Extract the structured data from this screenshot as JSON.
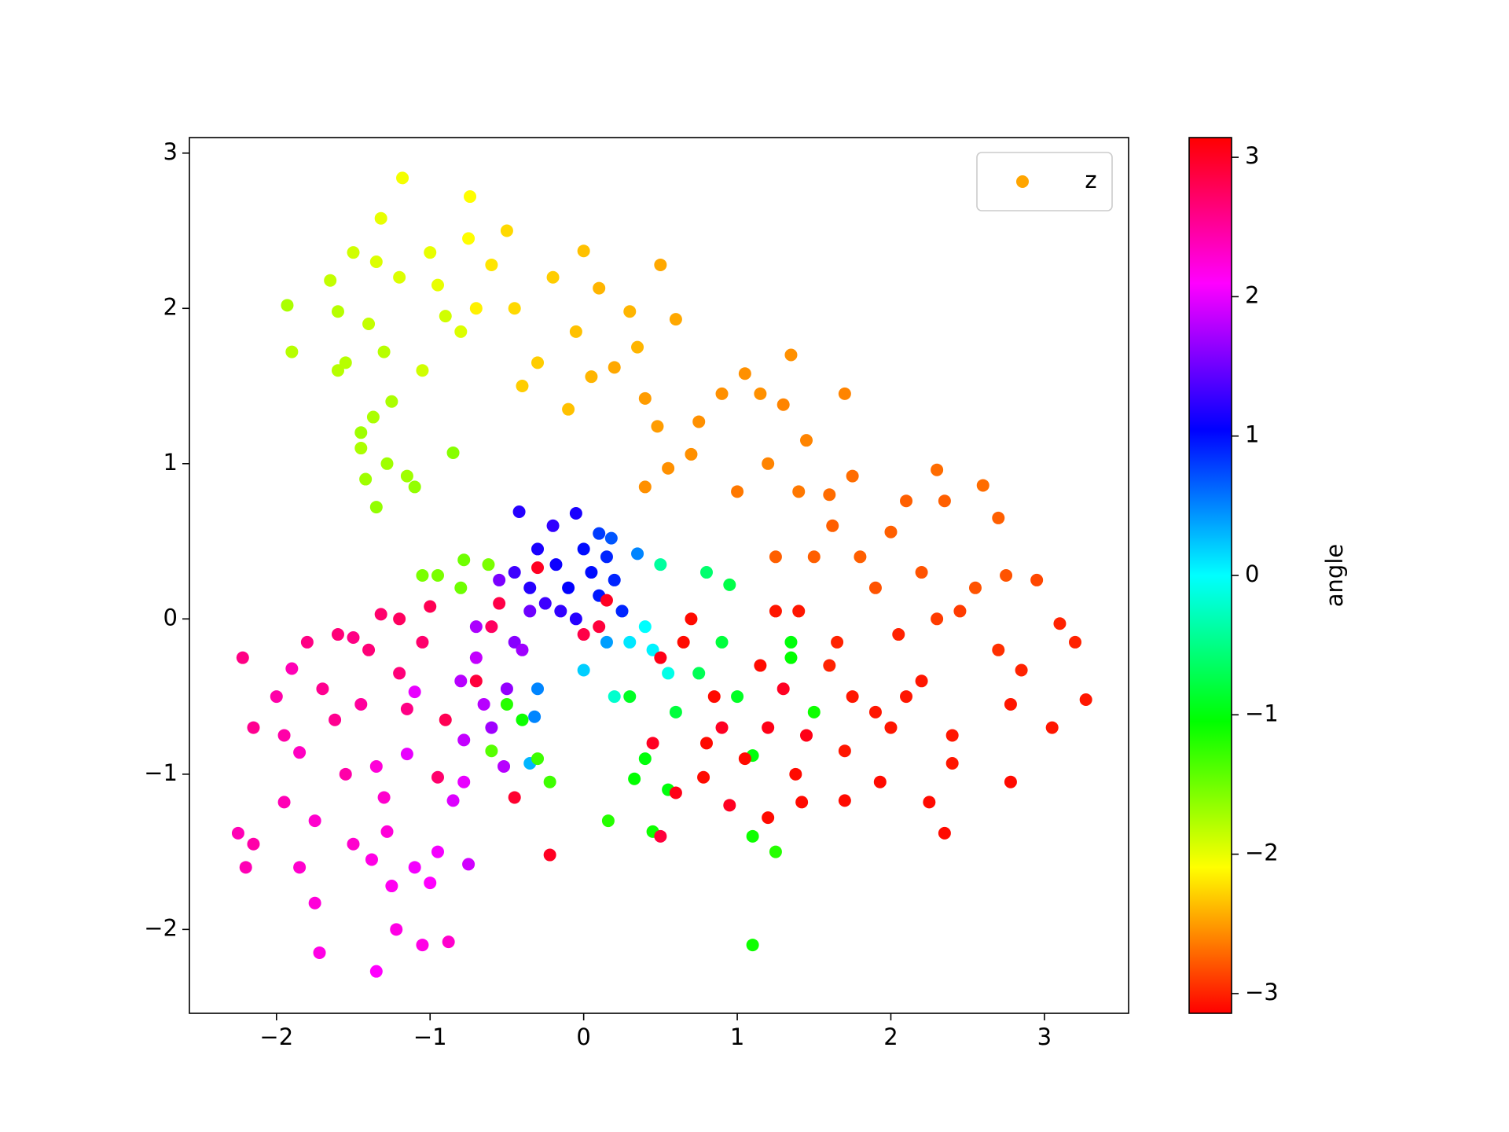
{
  "chart_data": {
    "type": "scatter",
    "xlim": [
      -2.567,
      3.548
    ],
    "ylim": [
      -2.54,
      3.1
    ],
    "xticks": [
      {
        "value": -2,
        "label": "−2"
      },
      {
        "value": -1,
        "label": "−1"
      },
      0,
      1,
      2,
      3
    ],
    "yticks": [
      {
        "value": -2,
        "label": "−2"
      },
      {
        "value": -1,
        "label": "−1"
      },
      0,
      1,
      2,
      3
    ],
    "legend": "upper right",
    "x": [
      -1.93,
      -1.9,
      -1.65,
      -1.6,
      -1.55,
      -1.5,
      -1.45,
      -1.4,
      -1.35,
      -1.32,
      -1.3,
      -1.28,
      -1.25,
      -1.2,
      -1.18,
      -1.15,
      -1.1,
      -1.05,
      -1.0,
      -0.95,
      -0.9,
      -0.85,
      -0.8,
      -0.75,
      -0.74,
      -1.42,
      -1.35,
      -1.45,
      -1.6,
      -1.37,
      -0.7,
      -0.6,
      -0.5,
      -0.45,
      -0.4,
      -0.3,
      -0.2,
      -0.1,
      -0.05,
      0.0,
      0.05,
      0.1,
      0.2,
      0.3,
      0.4,
      0.48,
      0.5,
      0.55,
      0.6,
      0.7,
      0.75,
      0.9,
      1.0,
      1.05,
      1.15,
      1.2,
      1.3,
      1.35,
      1.45,
      1.7,
      1.4,
      1.6,
      1.75,
      0.4,
      0.35,
      1.25,
      1.5,
      1.62,
      1.8,
      1.9,
      2.0,
      2.1,
      2.2,
      2.3,
      2.35,
      2.6,
      2.7,
      2.75,
      2.95,
      2.55,
      2.3,
      2.45,
      2.7,
      3.1,
      3.2,
      3.27,
      3.05,
      2.85,
      2.78,
      2.78,
      2.4,
      2.4,
      2.25,
      2.35,
      2.0,
      1.93,
      1.75,
      1.7,
      1.65,
      1.6,
      2.05,
      2.2,
      1.9,
      2.1,
      1.7,
      -0.42,
      -0.3,
      -0.2,
      -0.18,
      -0.1,
      -0.05,
      0.0,
      0.05,
      0.1,
      0.15,
      -0.35,
      -0.25,
      -0.15,
      0.2,
      0.18,
      -0.45,
      -0.05,
      0.25,
      0.35,
      0.1,
      0.15,
      0.0,
      -0.3,
      -0.32,
      0.4,
      0.55,
      0.45,
      -0.35,
      0.3,
      0.2,
      0.5,
      0.8,
      0.95,
      0.3,
      0.6,
      0.4,
      0.33,
      0.55,
      0.16,
      0.45,
      0.75,
      0.9,
      1.0,
      1.1,
      1.1,
      1.1,
      1.25,
      1.35,
      1.35,
      1.5,
      -0.5,
      -0.4,
      -0.3,
      -0.22,
      -0.6,
      -1.05,
      -0.95,
      -0.78,
      -0.8,
      -0.62,
      0.15,
      0.1,
      0.0,
      0.5,
      0.65,
      0.7,
      0.85,
      0.9,
      0.95,
      1.05,
      1.15,
      1.2,
      1.2,
      1.3,
      1.38,
      1.42,
      1.45,
      1.4,
      0.78,
      0.6,
      0.5,
      0.8,
      -0.22,
      -0.45,
      -0.3,
      -0.55,
      -0.7,
      -0.6,
      0.45,
      1.25,
      -2.25,
      -2.2,
      -2.15,
      -2.15,
      -2.22,
      -2.0,
      -1.95,
      -1.95,
      -1.9,
      -1.85,
      -1.85,
      -1.8,
      -1.75,
      -1.75,
      -1.72,
      -1.7,
      -1.62,
      -1.6,
      -1.55,
      -1.5,
      -1.45,
      -1.4,
      -1.38,
      -1.35,
      -1.35,
      -1.32,
      -1.3,
      -1.28,
      -1.25,
      -1.22,
      -1.2,
      -1.2,
      -1.15,
      -1.05,
      -1.0,
      -0.95,
      -0.9,
      -0.88,
      -1.05,
      -1.5,
      -0.95,
      -1.0,
      -1.1,
      -1.15,
      -0.85,
      -0.75,
      -0.8,
      -0.7,
      -0.6,
      -0.5,
      -0.45,
      -0.55,
      -0.4,
      -0.7,
      -0.78,
      -0.52,
      -1.1,
      -0.65,
      -0.35,
      -0.78
    ],
    "series": [
      {
        "name": "z",
        "color": "#ffa500",
        "values": [
          2.02,
          1.72,
          2.18,
          1.98,
          1.65,
          2.36,
          1.2,
          1.9,
          2.3,
          2.58,
          1.72,
          1.0,
          1.4,
          2.2,
          2.84,
          0.92,
          0.85,
          1.6,
          2.36,
          2.15,
          1.95,
          1.07,
          1.85,
          2.45,
          2.72,
          0.9,
          0.72,
          1.1,
          1.6,
          1.3,
          2.0,
          2.28,
          2.5,
          2.0,
          1.5,
          1.65,
          2.2,
          1.35,
          1.85,
          2.37,
          1.56,
          2.13,
          1.62,
          1.98,
          1.42,
          1.24,
          2.28,
          0.97,
          1.93,
          1.06,
          1.27,
          1.45,
          0.82,
          1.58,
          1.45,
          1.0,
          1.38,
          1.7,
          1.15,
          1.45,
          0.82,
          0.8,
          0.92,
          0.85,
          1.75,
          0.4,
          0.4,
          0.6,
          0.4,
          0.2,
          0.56,
          0.76,
          0.3,
          0.96,
          0.76,
          0.86,
          0.65,
          0.28,
          0.25,
          0.2,
          0.0,
          0.05,
          -0.2,
          -0.03,
          -0.15,
          -0.52,
          -0.7,
          -0.33,
          -0.55,
          -1.05,
          -0.75,
          -0.93,
          -1.18,
          -1.38,
          -0.7,
          -1.05,
          -0.5,
          -0.85,
          -0.15,
          -0.3,
          -0.1,
          -0.4,
          -0.6,
          -0.5,
          -1.17,
          0.69,
          0.45,
          0.6,
          0.35,
          0.2,
          0.68,
          0.45,
          0.3,
          0.15,
          0.4,
          0.2,
          0.1,
          0.05,
          0.25,
          0.52,
          0.3,
          0.0,
          0.05,
          0.42,
          0.55,
          -0.15,
          -0.33,
          -0.45,
          -0.63,
          -0.05,
          -0.35,
          -0.2,
          -0.93,
          -0.15,
          -0.5,
          0.35,
          0.3,
          0.22,
          -0.5,
          -0.6,
          -0.9,
          -1.03,
          -1.1,
          -1.3,
          -1.37,
          -0.35,
          -0.15,
          -0.5,
          -0.88,
          -1.4,
          -2.1,
          -1.5,
          -0.15,
          -0.25,
          -0.6,
          -0.55,
          -0.65,
          -0.9,
          -1.05,
          -0.85,
          0.28,
          0.28,
          0.38,
          0.2,
          0.35,
          0.12,
          -0.05,
          -0.1,
          -0.25,
          -0.15,
          0.0,
          -0.5,
          -0.7,
          -1.2,
          -0.9,
          -0.3,
          -0.7,
          -1.28,
          -0.45,
          -1.0,
          -1.18,
          -0.75,
          0.05,
          -1.02,
          -1.12,
          -1.4,
          -0.8,
          -1.52,
          -1.15,
          0.33,
          0.1,
          -0.4,
          -0.05,
          -0.8,
          0.05,
          -1.38,
          -1.6,
          -1.45,
          -0.7,
          -0.25,
          -0.5,
          -0.75,
          -1.18,
          -0.32,
          -0.86,
          -1.6,
          -0.15,
          -1.3,
          -1.83,
          -2.15,
          -0.45,
          -0.65,
          -0.1,
          -1.0,
          -1.45,
          -0.55,
          -0.2,
          -1.55,
          -0.95,
          -2.27,
          0.03,
          -1.15,
          -1.37,
          -1.72,
          -2.0,
          0.0,
          -0.35,
          -0.58,
          -0.15,
          0.08,
          -1.02,
          -0.65,
          -2.08,
          -2.1,
          -0.12,
          -1.5,
          -1.7,
          -1.6,
          -0.87,
          -1.17,
          -1.58,
          -0.4,
          -0.05,
          -0.7,
          -0.45,
          -0.15,
          0.25,
          -0.2,
          -0.25,
          -1.05,
          -0.95,
          -0.47,
          -0.55,
          0.05,
          -0.78
        ],
        "c": [
          -1.75,
          -1.8,
          -1.85,
          -1.8,
          -1.8,
          -1.9,
          -1.7,
          -1.85,
          -1.95,
          -2.0,
          -1.8,
          -1.7,
          -1.75,
          -1.95,
          -2.05,
          -1.7,
          -1.65,
          -1.9,
          -2.0,
          -2.0,
          -1.9,
          -1.6,
          -1.95,
          -2.1,
          -2.1,
          -1.7,
          -1.65,
          -1.75,
          -1.8,
          -1.75,
          -2.15,
          -2.2,
          -2.25,
          -2.25,
          -2.3,
          -2.3,
          -2.3,
          -2.35,
          -2.35,
          -2.35,
          -2.4,
          -2.4,
          -2.45,
          -2.4,
          -2.5,
          -2.5,
          -2.45,
          -2.55,
          -2.45,
          -2.55,
          -2.55,
          -2.55,
          -2.65,
          -2.55,
          -2.55,
          -2.6,
          -2.6,
          -2.55,
          -2.6,
          -2.6,
          -2.65,
          -2.7,
          -2.7,
          -2.55,
          -2.4,
          -2.75,
          -2.75,
          -2.75,
          -2.75,
          -2.8,
          -2.75,
          -2.75,
          -2.8,
          -2.7,
          -2.75,
          -2.7,
          -2.75,
          -2.8,
          -2.85,
          -2.8,
          -2.9,
          -2.9,
          -2.95,
          -3.0,
          -3.0,
          -3.05,
          -3.05,
          -3.0,
          -3.05,
          -3.1,
          -3.05,
          -3.05,
          -3.1,
          -3.1,
          -3.05,
          -3.1,
          -3.05,
          -3.05,
          -3.0,
          -3.0,
          -3.0,
          -3.05,
          -3.05,
          -3.05,
          -3.1,
          1.2,
          1.15,
          1.25,
          1.1,
          1.05,
          1.15,
          1.0,
          1.0,
          0.95,
          0.9,
          1.2,
          1.3,
          1.25,
          0.9,
          0.7,
          1.3,
          1.2,
          0.9,
          0.5,
          0.8,
          0.4,
          0.2,
          0.5,
          0.5,
          0.0,
          -0.1,
          0.05,
          0.3,
          0.1,
          -0.2,
          -0.4,
          -0.6,
          -0.75,
          -0.9,
          -0.8,
          -1.0,
          -1.05,
          -1.0,
          -1.2,
          -1.1,
          -0.7,
          -0.8,
          -0.9,
          -1.0,
          -1.1,
          -1.1,
          -1.2,
          -1.0,
          -1.05,
          -1.1,
          -1.2,
          -1.1,
          -1.3,
          -1.3,
          -1.4,
          -1.55,
          -1.55,
          -1.5,
          -1.5,
          -1.55,
          3.0,
          2.9,
          2.85,
          3.05,
          -3.1,
          -3.1,
          -3.1,
          3.0,
          3.0,
          -3.1,
          -3.1,
          3.05,
          -3.1,
          3.0,
          -3.1,
          -3.1,
          3.05,
          -3.05,
          -3.1,
          3.05,
          2.9,
          -3.1,
          3.0,
          2.95,
          3.0,
          2.85,
          2.9,
          2.75,
          3.0,
          -3.05,
          2.4,
          2.4,
          2.45,
          2.55,
          2.6,
          2.45,
          2.45,
          2.4,
          2.4,
          2.35,
          2.3,
          2.6,
          2.3,
          2.25,
          2.2,
          2.55,
          2.55,
          2.65,
          2.45,
          2.3,
          2.5,
          2.65,
          2.2,
          2.25,
          2.1,
          2.7,
          2.3,
          2.25,
          2.15,
          2.2,
          2.75,
          2.65,
          2.6,
          2.7,
          2.8,
          2.7,
          2.8,
          2.3,
          2.2,
          2.6,
          2.05,
          2.1,
          2.05,
          2.0,
          1.95,
          1.9,
          1.8,
          1.75,
          1.7,
          1.65,
          1.6,
          1.55,
          1.7,
          1.85,
          2.0,
          1.8,
          2.0,
          1.8,
          1.5,
          1.85
        ]
      }
    ],
    "colorbar": {
      "label": "angle",
      "cmap": "hsv",
      "clim": [
        -3.14159,
        3.14159
      ],
      "ticks": [
        {
          "value": -3,
          "label": "−3"
        },
        {
          "value": -2,
          "label": "−2"
        },
        {
          "value": -1,
          "label": "−1"
        },
        0,
        1,
        2,
        3
      ]
    }
  }
}
